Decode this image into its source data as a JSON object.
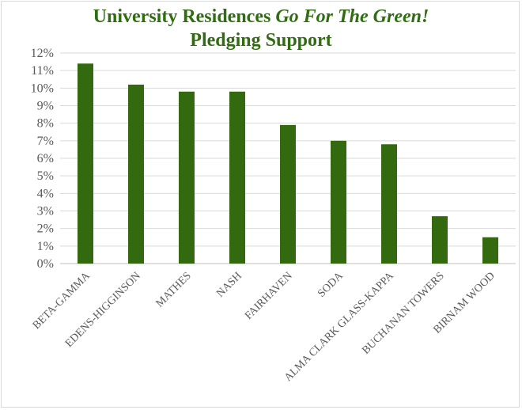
{
  "chart_data": {
    "type": "bar",
    "title_main": "University Residences ",
    "title_italic": "Go For The Green!",
    "title_line2": "Pledging Support",
    "xlabel": "",
    "ylabel": "",
    "ylim": [
      0,
      12
    ],
    "y_ticks": [
      "0%",
      "1%",
      "2%",
      "3%",
      "4%",
      "5%",
      "6%",
      "7%",
      "8%",
      "9%",
      "10%",
      "11%",
      "12%"
    ],
    "grid": true,
    "categories": [
      "BETA-GAMMA",
      "EDENS-HIGGINSON",
      "MATHES",
      "NASH",
      "FAIRHAVEN",
      "SODA",
      "ALMA CLARK GLASS-KAPPA",
      "BUCHANAN TOWERS",
      "BIRNAM WOOD"
    ],
    "values": [
      11.4,
      10.2,
      9.8,
      9.8,
      7.9,
      7.0,
      6.8,
      2.7,
      1.5
    ],
    "bar_color": "#336a10",
    "title_color": "#2f6d10",
    "grid_color": "#d9d9d9",
    "axis_color": "#bfbfbf"
  }
}
